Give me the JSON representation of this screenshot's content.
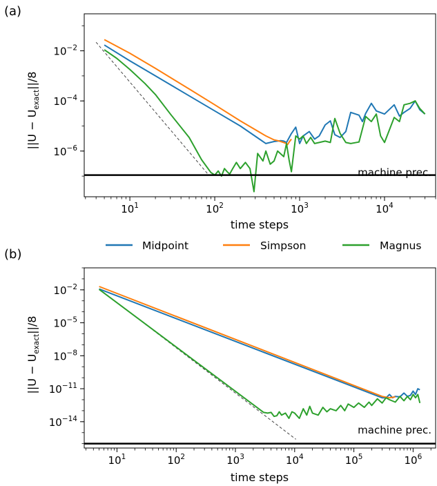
{
  "legend": [
    {
      "label": "Midpoint",
      "color": "#1f77b4"
    },
    {
      "label": "Simpson",
      "color": "#ff7f0e"
    },
    {
      "label": "Magnus",
      "color": "#2ca02c"
    }
  ],
  "chart_data": [
    {
      "panel_label": "(a)",
      "type": "line",
      "xlabel": "time steps",
      "ylabel_main": "||U − U",
      "ylabel_sub": "exact",
      "ylabel_tail": "||/8",
      "xscale": "log",
      "yscale": "log",
      "xlim": [
        2.9,
        40000
      ],
      "ylim": [
        1.5e-08,
        0.3
      ],
      "xticks": [
        {
          "exp": "1",
          "value": 10
        },
        {
          "exp": "2",
          "value": 100
        },
        {
          "exp": "3",
          "value": 1000
        },
        {
          "exp": "4",
          "value": 10000
        }
      ],
      "yticks": [
        {
          "exp": "−2",
          "value": 0.01
        },
        {
          "exp": "−4",
          "value": 0.0001
        },
        {
          "exp": "−6",
          "value": 1e-06
        }
      ],
      "machine_precision": {
        "label": "machine prec.",
        "value": 1.1e-07
      },
      "reference_line": {
        "style": "dashed",
        "x": [
          4,
          85
        ],
        "y": [
          0.022,
          1.1e-07
        ]
      },
      "series": [
        {
          "name": "Midpoint",
          "color": "#1f77b4",
          "x": [
            5,
            10,
            20,
            50,
            100,
            200,
            400,
            500,
            600,
            650,
            700,
            800,
            900,
            1000,
            1100,
            1300,
            1500,
            1700,
            2000,
            2300,
            2600,
            3000,
            3500,
            4000,
            5000,
            5500,
            6000,
            7000,
            8000,
            10000,
            13000,
            15000,
            17000,
            20000,
            23000,
            26000,
            30000
          ],
          "y": [
            0.017,
            0.004,
            0.001,
            0.00016,
            4e-05,
            1e-05,
            2e-06,
            2.4e-06,
            2.6e-06,
            2.5e-06,
            2.2e-06,
            5e-06,
            9e-06,
            2e-06,
            4e-06,
            6e-06,
            3e-06,
            4e-06,
            1.1e-05,
            1.6e-05,
            4.5e-06,
            3.5e-06,
            6e-06,
            3.5e-05,
            2.7e-05,
            1.5e-05,
            3.2e-05,
            8e-05,
            4e-05,
            3e-05,
            7e-05,
            2.5e-05,
            3.5e-05,
            5e-05,
            0.0001,
            4.5e-05,
            3e-05
          ]
        },
        {
          "name": "Simpson",
          "color": "#ff7f0e",
          "x": [
            5,
            10,
            20,
            50,
            100,
            200,
            400,
            500,
            550,
            600,
            650,
            700,
            720,
            760,
            800
          ],
          "y": [
            0.028,
            0.008,
            0.002,
            0.0003,
            7e-05,
            1.6e-05,
            4e-06,
            2.8e-06,
            2.6e-06,
            2.4e-06,
            2.2e-06,
            2e-06,
            1.8e-06,
            2.4e-06,
            3e-06
          ]
        },
        {
          "name": "Magnus",
          "color": "#2ca02c",
          "x": [
            5,
            7,
            10,
            15,
            20,
            30,
            50,
            70,
            90,
            100,
            110,
            120,
            130,
            140,
            150,
            160,
            180,
            200,
            230,
            260,
            290,
            320,
            370,
            400,
            450,
            500,
            550,
            650,
            700,
            750,
            800,
            900,
            1000,
            1100,
            1200,
            1350,
            1500,
            1700,
            2000,
            2300,
            2600,
            3000,
            3500,
            4000,
            5000,
            6000,
            7000,
            8000,
            9000,
            10000,
            13000,
            15000,
            17000,
            20000,
            23000,
            26000,
            30000
          ],
          "y": [
            0.011,
            0.005,
            0.0018,
            0.0005,
            0.00018,
            3e-05,
            3.5e-06,
            4.5e-07,
            1.4e-07,
            1.1e-07,
            1.6e-07,
            1e-07,
            2e-07,
            1.5e-07,
            1.2e-07,
            1.8e-07,
            3.5e-07,
            2e-07,
            3.5e-07,
            2e-07,
            2.4e-08,
            8e-07,
            4e-07,
            1e-06,
            3e-07,
            4e-07,
            1e-06,
            6e-07,
            2e-06,
            4.5e-07,
            1.5e-07,
            4e-06,
            3e-06,
            4e-06,
            2e-06,
            3.5e-06,
            2e-06,
            2.2e-06,
            2.5e-06,
            2.2e-06,
            2e-05,
            5e-06,
            2.2e-06,
            2e-06,
            2.3e-06,
            2.4e-05,
            1.5e-05,
            3e-05,
            4e-06,
            2.2e-06,
            2.2e-05,
            1.5e-05,
            7e-05,
            8e-05,
            0.0001,
            5e-05,
            3e-05
          ]
        }
      ]
    },
    {
      "panel_label": "(b)",
      "type": "line",
      "xlabel": "time steps",
      "ylabel_main": "||U − U",
      "ylabel_sub": "exact",
      "ylabel_tail": "||/8",
      "xscale": "log",
      "yscale": "log",
      "xlim": [
        2.8,
        2400000.0
      ],
      "ylim": [
        4e-17,
        1
      ],
      "xticks": [
        {
          "exp": "1",
          "value": 10
        },
        {
          "exp": "2",
          "value": 100
        },
        {
          "exp": "3",
          "value": 1000
        },
        {
          "exp": "4",
          "value": 10000
        },
        {
          "exp": "5",
          "value": 100000
        },
        {
          "exp": "6",
          "value": 1000000
        }
      ],
      "yticks": [
        {
          "exp": "−2",
          "value": 0.01
        },
        {
          "exp": "−5",
          "value": 1e-05
        },
        {
          "exp": "−8",
          "value": 1e-08
        },
        {
          "exp": "−11",
          "value": 1e-11
        },
        {
          "exp": "−14",
          "value": 1e-14
        }
      ],
      "machine_precision": {
        "label": "machine prec.",
        "value": 1e-16
      },
      "reference_line": {
        "style": "dashed",
        "x": [
          5,
          10500
        ],
        "y": [
          0.012,
          2.5e-16
        ]
      },
      "series": [
        {
          "name": "Midpoint",
          "color": "#1f77b4",
          "x": [
            5,
            300000,
            350000,
            400000,
            450000,
            500000,
            600000,
            700000,
            800000,
            900000,
            1000000,
            1100000,
            1200000,
            1300000
          ],
          "y": [
            0.012,
            1.5e-12,
            1.5e-12,
            3e-12,
            1.5e-12,
            2e-12,
            1.8e-12,
            4e-12,
            2e-12,
            2.5e-12,
            6e-12,
            3e-12,
            1e-11,
            8e-12
          ]
        },
        {
          "name": "Simpson",
          "color": "#ff7f0e",
          "x": [
            5,
            300000,
            400000,
            500000
          ],
          "y": [
            0.02,
            2e-12,
            1.5e-12,
            1.8e-12
          ]
        },
        {
          "name": "Magnus",
          "color": "#2ca02c",
          "x": [
            5,
            3000,
            3500,
            4000,
            4500,
            5000,
            5500,
            6000,
            7000,
            8000,
            9000,
            10000,
            12000,
            14000,
            16000,
            18000,
            20000,
            25000,
            30000,
            35000,
            40000,
            50000,
            60000,
            70000,
            80000,
            100000,
            120000,
            150000,
            180000,
            200000,
            250000,
            300000,
            350000,
            400000,
            500000,
            600000,
            700000,
            800000,
            900000,
            1000000,
            1100000,
            1200000,
            1300000
          ],
          "y": [
            0.011,
            7e-14,
            6e-14,
            7e-14,
            3e-14,
            3.5e-14,
            8e-14,
            4e-14,
            6e-14,
            2e-14,
            8e-14,
            6e-14,
            2e-14,
            1.5e-13,
            4e-14,
            2.5e-13,
            6e-14,
            4e-14,
            2e-13,
            8e-14,
            1.5e-13,
            1e-13,
            3e-13,
            1e-13,
            4e-13,
            2e-13,
            5e-13,
            2e-13,
            6e-13,
            3e-13,
            1.2e-12,
            5e-13,
            1.5e-12,
            1e-12,
            6e-13,
            2e-12,
            8e-13,
            2e-12,
            1e-12,
            3e-12,
            1.5e-12,
            3e-12,
            5e-13
          ]
        }
      ]
    }
  ]
}
